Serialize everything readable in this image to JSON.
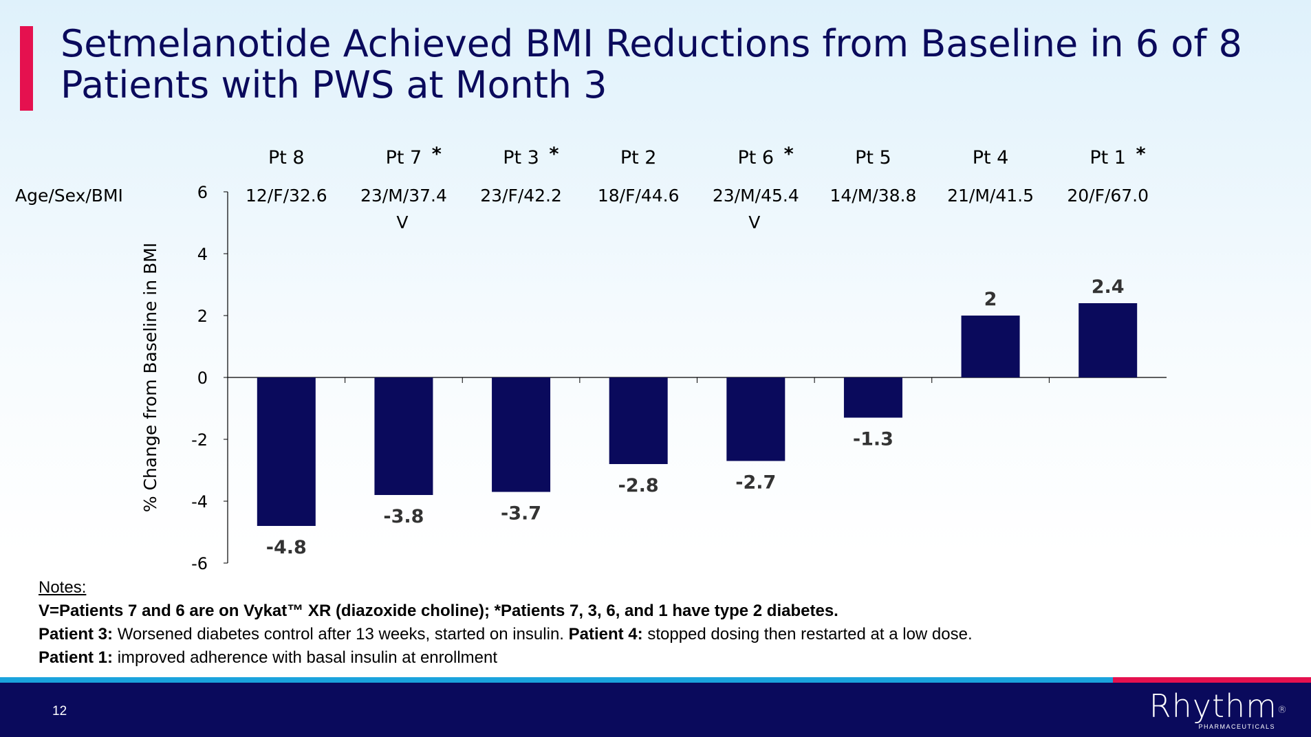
{
  "slide": {
    "title": "Setmelanotide Achieved BMI Reductions from Baseline in 6 of 8 Patients with PWS at Month 3",
    "page_number": "12",
    "logo": {
      "name": "Rhythm",
      "reg": "®",
      "sub": "PHARMACEUTICALS"
    },
    "colors": {
      "bar": "#0a0a5c",
      "title": "#0a0a5c",
      "accent": "#e5114f",
      "stripe": "#1aa3dd",
      "footer": "#0a0a5c"
    }
  },
  "notes": {
    "heading": "Notes:",
    "line1": "V=Patients 7 and 6 are on Vykat™ XR (diazoxide choline); *Patients 7, 3, 6, and 1 have type 2 diabetes.",
    "line2_b1": "Patient 3:",
    "line2_t1": " Worsened diabetes control after 13 weeks, started on insulin. ",
    "line2_b2": "Patient 4:",
    "line2_t2": " stopped dosing then restarted at a low dose.",
    "line3_b": "Patient 1:",
    "line3_t": " improved adherence with basal insulin at enrollment"
  },
  "chart_data": {
    "type": "bar",
    "categories": [
      "Pt 8",
      "Pt 7",
      "Pt 3",
      "Pt 2",
      "Pt 6",
      "Pt 5",
      "Pt 4",
      "Pt 1"
    ],
    "asterisk": [
      false,
      true,
      true,
      false,
      true,
      false,
      false,
      true
    ],
    "row_label": "Age/Sex/BMI",
    "demographics": [
      "12/F/32.6",
      "23/M/37.4",
      "23/F/42.2",
      "18/F/44.6",
      "23/M/45.4",
      "14/M/38.8",
      "21/M/41.5",
      "20/F/67.0"
    ],
    "v_flag": [
      "",
      "V",
      "",
      "",
      "V",
      "",
      "",
      ""
    ],
    "values": [
      -4.8,
      -3.8,
      -3.7,
      -2.8,
      -2.7,
      -1.3,
      2,
      2.4
    ],
    "data_labels": [
      "-4.8",
      "-3.8",
      "-3.7",
      "-2.8",
      "-2.7",
      "-1.3",
      "2",
      "2.4"
    ],
    "ylabel": "% Change from Baseline in BMI",
    "ylim": [
      -6,
      6
    ],
    "yticks": [
      6,
      4,
      2,
      0,
      -2,
      -4,
      -6
    ],
    "grid": false,
    "legend": "none"
  }
}
